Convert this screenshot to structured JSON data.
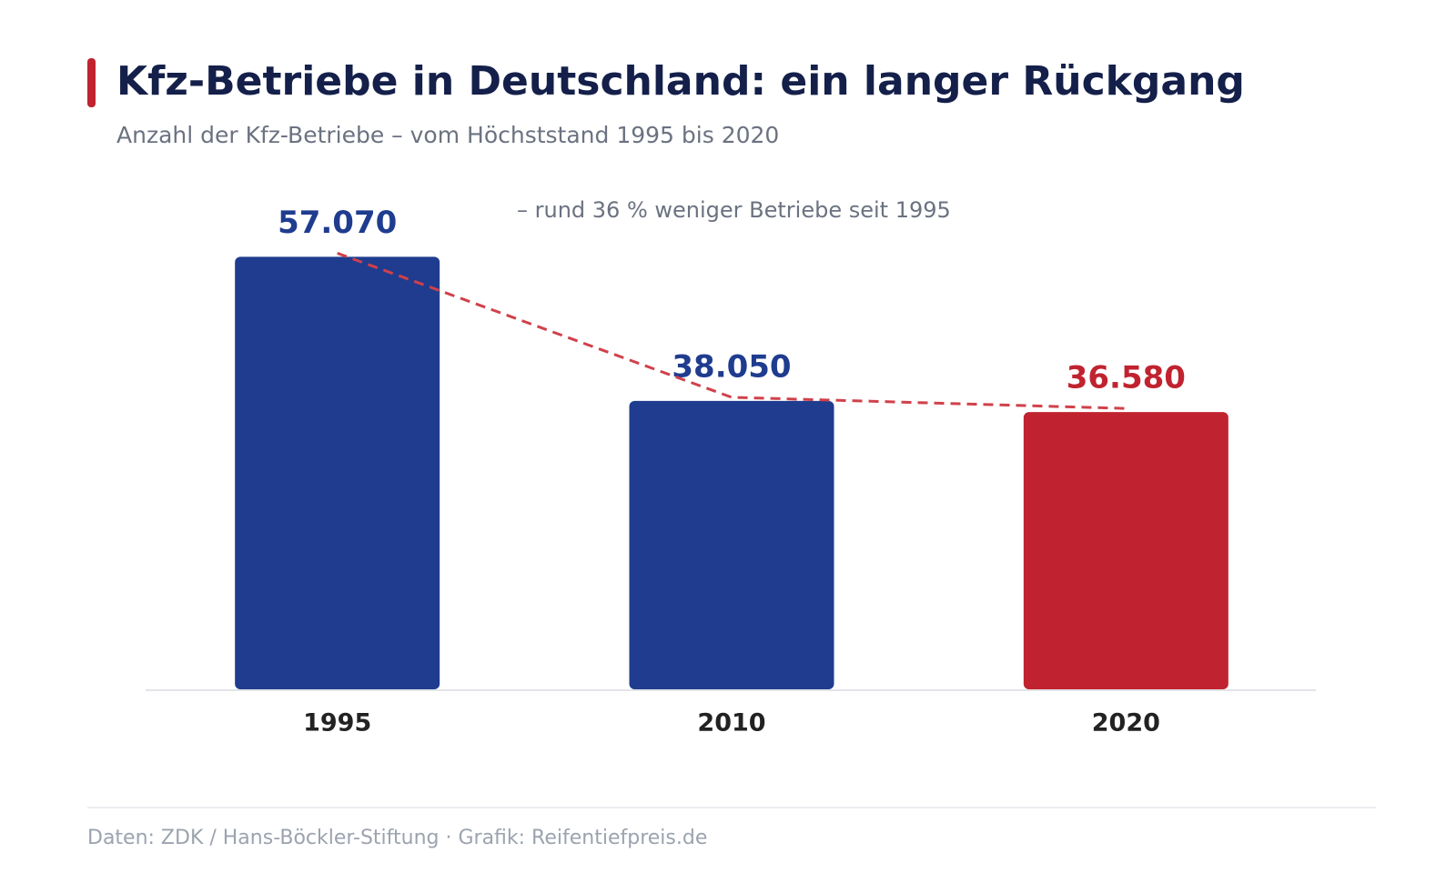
{
  "chart_data": {
    "type": "bar",
    "title": "Kfz-Betriebe in Deutschland: ein langer Rückgang",
    "subtitle": "Anzahl der Kfz-Betriebe – vom Höchststand 1995 bis 2020",
    "annotation": "– rund 36 % weniger Betriebe seit 1995",
    "categories": [
      "1995",
      "2010",
      "2020"
    ],
    "values": [
      57070,
      38050,
      36580
    ],
    "value_labels": [
      "57.070",
      "38.050",
      "36.580"
    ],
    "colors": [
      "#1f3c8f",
      "#1f3c8f",
      "#c0232f"
    ],
    "line_color": "#d0414b",
    "ylim": [
      0,
      60000
    ],
    "source": "Daten: ZDK / Hans-Böckler-Stiftung · Grafik: Reifentiefpreis.de"
  }
}
